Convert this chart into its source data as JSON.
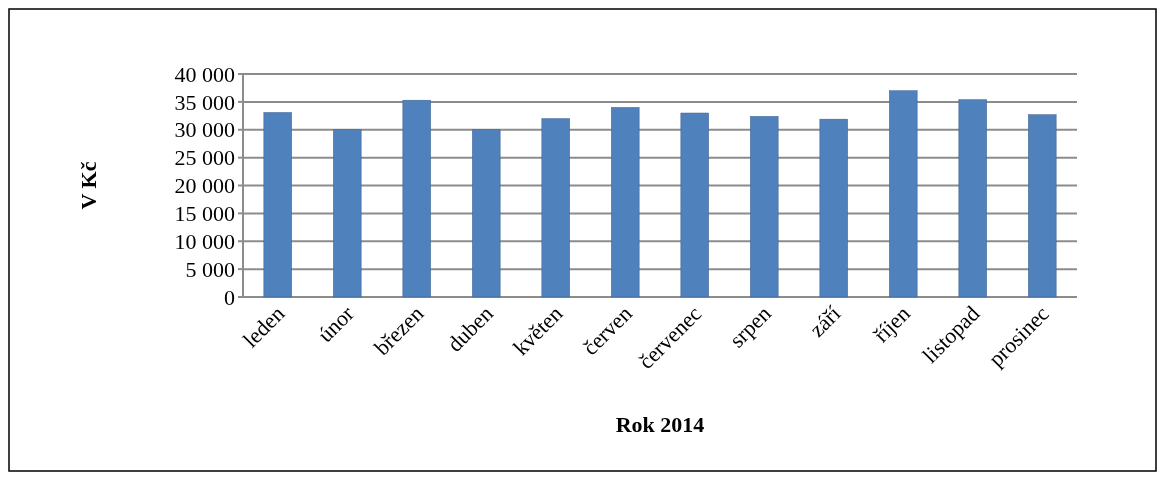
{
  "chart_data": {
    "type": "bar",
    "xlabel": "Rok 2014",
    "ylabel": "V Kč",
    "categories": [
      "leden",
      "únor",
      "březen",
      "duben",
      "květen",
      "červen",
      "červenec",
      "srpen",
      "září",
      "říjen",
      "listopad",
      "prosinec"
    ],
    "values": [
      33100,
      30000,
      35300,
      30000,
      32000,
      34000,
      33000,
      32400,
      31900,
      37000,
      35400,
      32700
    ],
    "color": "#4f81bd",
    "ylim": [
      0,
      40000
    ],
    "yticks": [
      {
        "value": 0,
        "label": "0"
      },
      {
        "value": 5000,
        "label": "5 000"
      },
      {
        "value": 10000,
        "label": "10 000"
      },
      {
        "value": 15000,
        "label": "15 000"
      },
      {
        "value": 20000,
        "label": "20 000"
      },
      {
        "value": 25000,
        "label": "25 000"
      },
      {
        "value": 30000,
        "label": "30 000"
      },
      {
        "value": 35000,
        "label": "35 000"
      },
      {
        "value": 40000,
        "label": "40 000"
      }
    ],
    "grid": "y"
  }
}
